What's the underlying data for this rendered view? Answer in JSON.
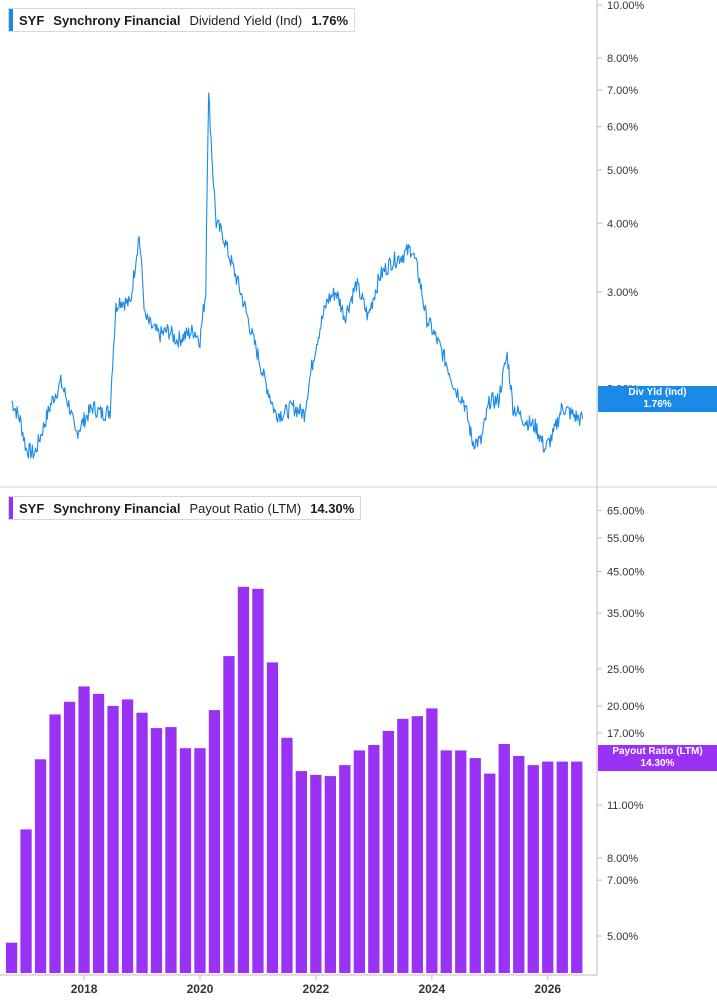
{
  "top_legend": {
    "ticker": "SYF",
    "company": "Synchrony Financial",
    "metric": "Dividend Yield (Ind)",
    "value": "1.76%"
  },
  "bottom_legend": {
    "ticker": "SYF",
    "company": "Synchrony Financial",
    "metric": "Payout Ratio (LTM)",
    "value": "14.30%"
  },
  "top_badge": {
    "label": "Div Yld (Ind)",
    "value": "1.76%"
  },
  "bottom_badge": {
    "label": "Payout Ratio (LTM)",
    "value": "14.30%"
  },
  "colors": {
    "line": "#1a8ae8",
    "bar": "#9932f5",
    "badge_blue": "#1a8ae8",
    "badge_purple": "#9932f5",
    "axis": "#bdbdbd"
  },
  "chart_data": [
    {
      "type": "line",
      "series_name": "Dividend Yield (Ind)",
      "y_scale": "log",
      "ylim": [
        1.45,
        10.0
      ],
      "y_ticks": [
        "10.00%",
        "8.00%",
        "7.00%",
        "6.00%",
        "5.00%",
        "4.00%",
        "3.00%",
        "2.00%"
      ],
      "y_tick_values": [
        10,
        8,
        7,
        6,
        5,
        4,
        3,
        2
      ],
      "x": [
        2016.75,
        2016.9,
        2017.0,
        2017.15,
        2017.3,
        2017.45,
        2017.6,
        2017.75,
        2017.85,
        2018.0,
        2018.15,
        2018.3,
        2018.45,
        2018.55,
        2018.6,
        2018.8,
        2018.95,
        2019.05,
        2019.15,
        2019.3,
        2019.45,
        2019.6,
        2019.75,
        2019.9,
        2020.0,
        2020.1,
        2020.15,
        2020.22,
        2020.28,
        2020.4,
        2020.5,
        2020.7,
        2020.9,
        2021.1,
        2021.3,
        2021.45,
        2021.6,
        2021.8,
        2022.0,
        2022.2,
        2022.35,
        2022.5,
        2022.7,
        2022.9,
        2023.1,
        2023.3,
        2023.5,
        2023.65,
        2023.75,
        2023.9,
        2024.05,
        2024.2,
        2024.4,
        2024.55,
        2024.7,
        2024.85,
        2025.0,
        2025.15,
        2025.3,
        2025.4,
        2025.6,
        2025.8,
        2025.95,
        2026.1,
        2026.25,
        2026.4,
        2026.55,
        2026.6
      ],
      "y": [
        1.9,
        1.75,
        1.55,
        1.52,
        1.7,
        1.9,
        2.05,
        1.85,
        1.65,
        1.75,
        1.85,
        1.8,
        1.82,
        2.8,
        2.9,
        2.85,
        3.8,
        2.7,
        2.6,
        2.5,
        2.55,
        2.45,
        2.5,
        2.55,
        2.45,
        3.0,
        6.8,
        5.0,
        4.0,
        3.8,
        3.5,
        3.0,
        2.5,
        2.1,
        1.8,
        1.8,
        1.85,
        1.8,
        2.4,
        2.9,
        3.0,
        2.7,
        3.1,
        2.7,
        3.2,
        3.4,
        3.5,
        3.6,
        3.3,
        2.7,
        2.5,
        2.3,
        2.0,
        1.9,
        1.6,
        1.6,
        1.9,
        1.9,
        2.3,
        1.85,
        1.75,
        1.7,
        1.55,
        1.65,
        1.85,
        1.8,
        1.76,
        1.76
      ],
      "x_ticks": [
        "2018",
        "2020",
        "2022",
        "2024",
        "2026"
      ],
      "x_tick_values": [
        2018,
        2020,
        2022,
        2024,
        2026
      ]
    },
    {
      "type": "bar",
      "series_name": "Payout Ratio (LTM)",
      "y_scale": "log",
      "ylim": [
        4.0,
        70.0
      ],
      "y_ticks": [
        "65.00%",
        "55.00%",
        "45.00%",
        "35.00%",
        "25.00%",
        "20.00%",
        "17.00%",
        "14.00%",
        "11.00%",
        "8.00%",
        "7.00%",
        "5.00%"
      ],
      "y_tick_values": [
        65,
        55,
        45,
        35,
        25,
        20,
        17,
        14,
        11,
        8,
        7,
        5
      ],
      "x": [
        2016.75,
        2017.0,
        2017.25,
        2017.5,
        2017.75,
        2018.0,
        2018.25,
        2018.5,
        2018.75,
        2019.0,
        2019.25,
        2019.5,
        2019.75,
        2020.0,
        2020.25,
        2020.5,
        2020.75,
        2021.0,
        2021.25,
        2021.5,
        2021.75,
        2022.0,
        2022.25,
        2022.5,
        2022.75,
        2023.0,
        2023.25,
        2023.5,
        2023.75,
        2024.0,
        2024.25,
        2024.5,
        2024.75,
        2025.0,
        2025.25,
        2025.5,
        2025.75,
        2026.0,
        2026.25,
        2026.5
      ],
      "values": [
        4.8,
        9.5,
        14.5,
        19.0,
        20.5,
        22.5,
        21.5,
        20.0,
        20.8,
        19.2,
        17.5,
        17.6,
        15.5,
        15.5,
        19.5,
        27.0,
        41.0,
        40.5,
        26.0,
        16.5,
        13.5,
        13.2,
        13.1,
        14.0,
        15.3,
        15.8,
        17.2,
        18.5,
        18.8,
        19.7,
        15.3,
        15.3,
        14.6,
        13.3,
        15.9,
        14.8,
        14.0,
        14.3,
        14.3,
        14.3
      ],
      "x_ticks": [
        "2018",
        "2020",
        "2022",
        "2024",
        "2026"
      ],
      "x_tick_values": [
        2018,
        2020,
        2022,
        2024,
        2026
      ]
    }
  ]
}
